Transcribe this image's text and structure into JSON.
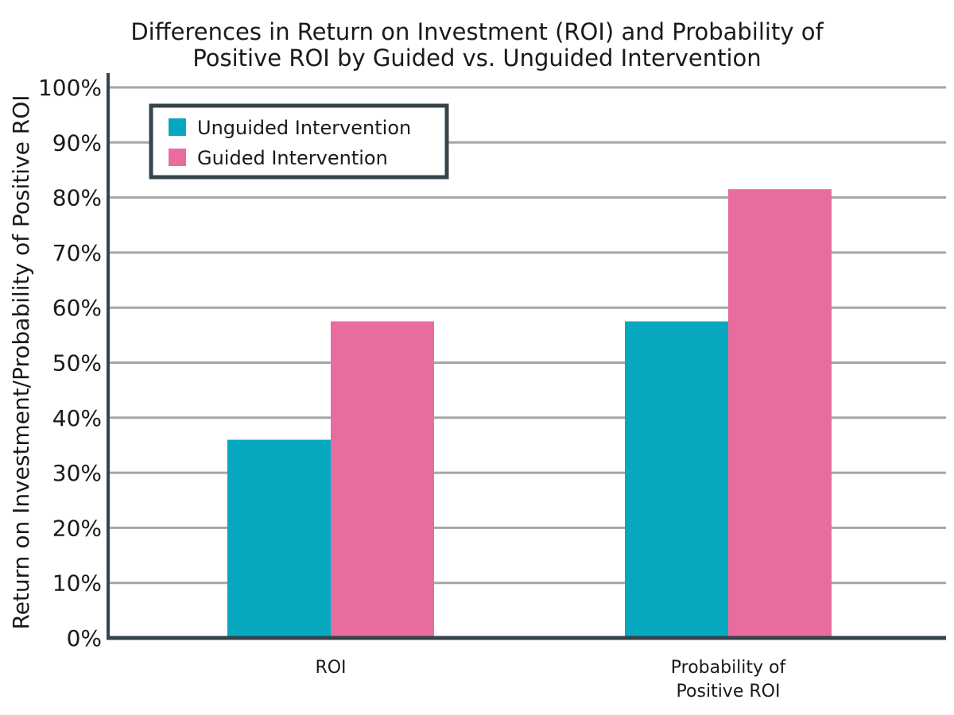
{
  "chart_data": {
    "type": "bar",
    "title_lines": [
      "Differences in Return on Investment (ROI) and Probability of",
      "Positive ROI by Guided vs. Unguided Intervention"
    ],
    "ylabel": "Return on Investment/Probability of Positive ROI",
    "xlabel": "",
    "categories": [
      [
        "ROI"
      ],
      [
        "Probability of",
        "Positive ROI"
      ]
    ],
    "series": [
      {
        "name": "Unguided Intervention",
        "color": "#06a8bf",
        "values": [
          36,
          57.5
        ]
      },
      {
        "name": "Guided Intervention",
        "color": "#e96c9f",
        "values": [
          57.5,
          81.5
        ]
      }
    ],
    "ylim": [
      0,
      100
    ],
    "yticks": [
      0,
      10,
      20,
      30,
      40,
      50,
      60,
      70,
      80,
      90,
      100
    ],
    "ytick_labels": [
      "0%",
      "10%",
      "20%",
      "30%",
      "40%",
      "50%",
      "60%",
      "70%",
      "80%",
      "90%",
      "100%"
    ],
    "grid": true,
    "legend_position": "top-left",
    "axis_color": "#37434b",
    "grid_color": "#a6a6a6"
  }
}
